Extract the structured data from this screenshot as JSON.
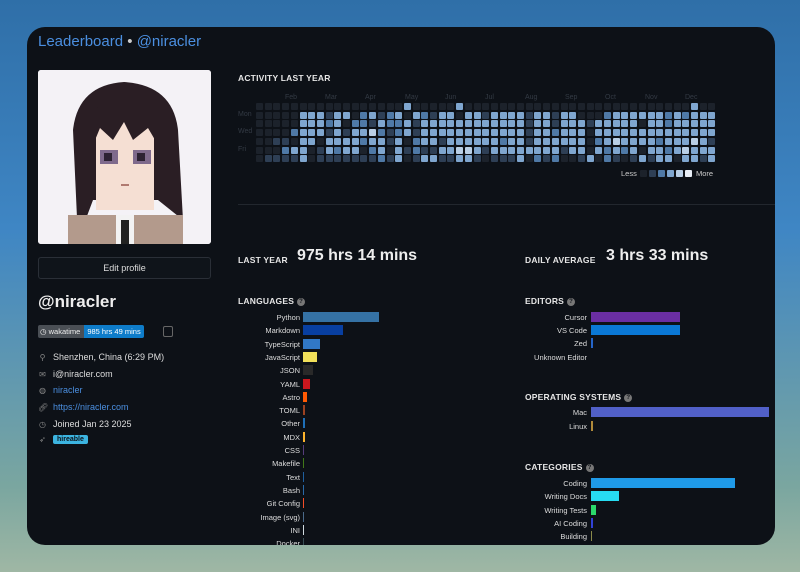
{
  "header": {
    "leaderboard": "Leaderboard",
    "separator": "•",
    "username": "@niracler"
  },
  "profile": {
    "edit_label": "Edit profile",
    "username": "@niracler",
    "badge": {
      "icon": "wakatime-icon",
      "label": "wakatime",
      "value": "985 hrs 49 mins"
    },
    "location": "Shenzhen, China (6:29 PM)",
    "email": "i@niracler.com",
    "github": "niracler",
    "website": "https://niracler.com",
    "joined": "Joined Jan 23 2025",
    "hireable": "hireable"
  },
  "activity": {
    "title": "ACTIVITY LAST YEAR",
    "months": [
      "Feb",
      "Mar",
      "Apr",
      "May",
      "Jun",
      "Jul",
      "Aug",
      "Sep",
      "Oct",
      "Nov",
      "Dec"
    ],
    "days": [
      "Mon",
      "Wed",
      "Fri"
    ],
    "less": "Less",
    "more": "More",
    "colors": [
      "#1c222b",
      "#2e3f55",
      "#4f79a6",
      "#7fa6cf",
      "#b9cfe6",
      "#e8eef6"
    ],
    "rows": [
      "00000000000000000300000300000000000000000000000000300",
      "00000333133023123032133033133331331330002333333232333",
      "00000333230221322313333333333331331333133333033233333",
      "00002333131334212313333333333331332333033333333333333",
      "00110330333323313023313333332331333333023433332333431",
      "00023301323302303121133443133333333133032323033234333",
      "01111301111111213013311331011130212001302101313303313"
    ]
  },
  "totals": {
    "last_year_label": "LAST YEAR",
    "last_year": "975 hrs 14 mins",
    "daily_label": "DAILY AVERAGE",
    "daily": "3 hrs 33 mins"
  },
  "languages": {
    "title": "LANGUAGES",
    "items": [
      {
        "name": "Python",
        "value": 100,
        "color": "#3572a5"
      },
      {
        "name": "Markdown",
        "value": 52,
        "color": "#083fa1"
      },
      {
        "name": "TypeScript",
        "value": 22,
        "color": "#3178c6"
      },
      {
        "name": "JavaScript",
        "value": 18,
        "color": "#f1e05a"
      },
      {
        "name": "JSON",
        "value": 13,
        "color": "#292929"
      },
      {
        "name": "YAML",
        "value": 9,
        "color": "#cb171e"
      },
      {
        "name": "Astro",
        "value": 5,
        "color": "#ff5a03"
      },
      {
        "name": "TOML",
        "value": 3,
        "color": "#9c4221"
      },
      {
        "name": "Other",
        "value": 2.5,
        "color": "#1e6fb8"
      },
      {
        "name": "MDX",
        "value": 2.5,
        "color": "#fcb32c"
      },
      {
        "name": "CSS",
        "value": 1.5,
        "color": "#563d7c"
      },
      {
        "name": "Makefile",
        "value": 1.5,
        "color": "#427819"
      },
      {
        "name": "Text",
        "value": 1.5,
        "color": "#1f5f9e"
      },
      {
        "name": "Bash",
        "value": 1.5,
        "color": "#2a6aa8"
      },
      {
        "name": "Git Config",
        "value": 1,
        "color": "#f44d27"
      },
      {
        "name": "Image (svg)",
        "value": 1,
        "color": "#4b6a8a"
      },
      {
        "name": "INI",
        "value": 1,
        "color": "#d1dbe0"
      },
      {
        "name": "Docker",
        "value": 0.5,
        "color": "#384d54"
      }
    ]
  },
  "editors": {
    "title": "EDITORS",
    "items": [
      {
        "name": "Cursor",
        "value": 50,
        "color": "#6a2ea3"
      },
      {
        "name": "VS Code",
        "value": 50,
        "color": "#0a78d6"
      },
      {
        "name": "Zed",
        "value": 1,
        "color": "#2565c9"
      },
      {
        "name": "Unknown Editor",
        "value": 0,
        "color": "#666"
      }
    ]
  },
  "os": {
    "title": "OPERATING SYSTEMS",
    "items": [
      {
        "name": "Mac",
        "value": 100,
        "color": "#5160c8"
      },
      {
        "name": "Linux",
        "value": 1,
        "color": "#b08a3a"
      }
    ]
  },
  "categories": {
    "title": "CATEGORIES",
    "items": [
      {
        "name": "Coding",
        "value": 81,
        "color": "#1f9ae8"
      },
      {
        "name": "Writing Docs",
        "value": 16,
        "color": "#27dcf2"
      },
      {
        "name": "Writing Tests",
        "value": 3,
        "color": "#2bd96b"
      },
      {
        "name": "AI Coding",
        "value": 1,
        "color": "#3142d6"
      },
      {
        "name": "Building",
        "value": 0.5,
        "color": "#8a8a4a"
      }
    ]
  }
}
